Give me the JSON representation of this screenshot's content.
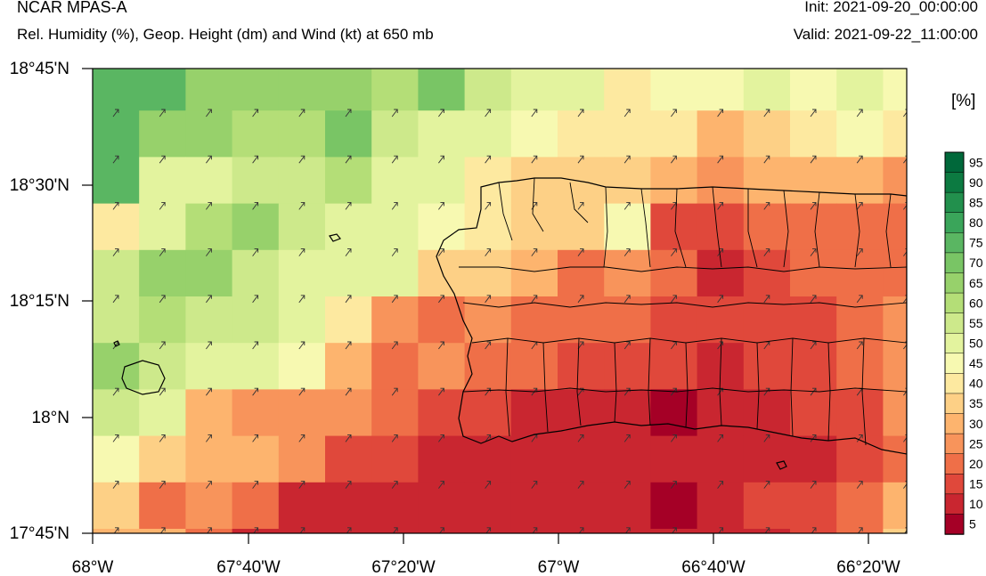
{
  "header": {
    "title": "NCAR MPAS-A",
    "subtitle": "Rel. Humidity (%), Geop. Height (dm) and Wind (kt) at 650 mb",
    "init": "Init: 2021-09-20_00:00:00",
    "valid": "Valid: 2021-09-22_11:00:00"
  },
  "colorbar": {
    "units": "[%]",
    "labels": [
      "95",
      "90",
      "85",
      "80",
      "75",
      "70",
      "65",
      "60",
      "55",
      "50",
      "45",
      "40",
      "35",
      "30",
      "25",
      "20",
      "15",
      "10",
      "5"
    ],
    "colors": [
      "#00683a",
      "#0c7a41",
      "#22904d",
      "#3aa55a",
      "#5ab662",
      "#79c565",
      "#97d16b",
      "#b4de77",
      "#cde98b",
      "#e3f39e",
      "#f7f9b1",
      "#fde9a0",
      "#fdd086",
      "#fdb46e",
      "#f8945b",
      "#ef6f48",
      "#e0483b",
      "#c92630",
      "#a50026"
    ]
  },
  "map": {
    "lat_labels": [
      "18°45'N",
      "18°30'N",
      "18°15'N",
      "18°N",
      "17°45'N"
    ],
    "lon_labels": [
      "68°W",
      "67°40'W",
      "67°20'W",
      "67°W",
      "66°40'W",
      "66°20'W"
    ],
    "grid_rh": [
      [
        75,
        75,
        65,
        65,
        65,
        65,
        60,
        70,
        55,
        50,
        50,
        40,
        45,
        45,
        50,
        45,
        50,
        45
      ],
      [
        75,
        65,
        65,
        60,
        60,
        70,
        55,
        50,
        50,
        45,
        40,
        40,
        40,
        30,
        35,
        40,
        45,
        40
      ],
      [
        75,
        50,
        50,
        55,
        55,
        60,
        50,
        50,
        40,
        35,
        35,
        35,
        30,
        25,
        30,
        30,
        30,
        25
      ],
      [
        40,
        50,
        60,
        65,
        55,
        50,
        50,
        45,
        40,
        35,
        35,
        45,
        15,
        15,
        20,
        20,
        20,
        20
      ],
      [
        55,
        65,
        65,
        55,
        50,
        50,
        50,
        35,
        35,
        30,
        20,
        25,
        20,
        10,
        15,
        20,
        20,
        20
      ],
      [
        55,
        60,
        55,
        55,
        50,
        40,
        25,
        20,
        25,
        20,
        20,
        20,
        15,
        15,
        15,
        15,
        20,
        25
      ],
      [
        65,
        55,
        50,
        50,
        45,
        30,
        20,
        25,
        20,
        20,
        15,
        15,
        15,
        10,
        15,
        15,
        20,
        25
      ],
      [
        55,
        50,
        30,
        25,
        25,
        25,
        20,
        15,
        15,
        10,
        10,
        10,
        5,
        10,
        10,
        15,
        15,
        25
      ],
      [
        45,
        35,
        30,
        30,
        25,
        15,
        15,
        10,
        10,
        10,
        10,
        10,
        10,
        10,
        10,
        10,
        15,
        20
      ],
      [
        35,
        20,
        25,
        20,
        10,
        10,
        10,
        10,
        10,
        10,
        10,
        10,
        5,
        10,
        15,
        15,
        20,
        30
      ],
      [
        30,
        30,
        20,
        10,
        10,
        10,
        10,
        10,
        10,
        10,
        10,
        10,
        10,
        10,
        10,
        15,
        20,
        35
      ]
    ],
    "wind_arrows": "NE"
  }
}
